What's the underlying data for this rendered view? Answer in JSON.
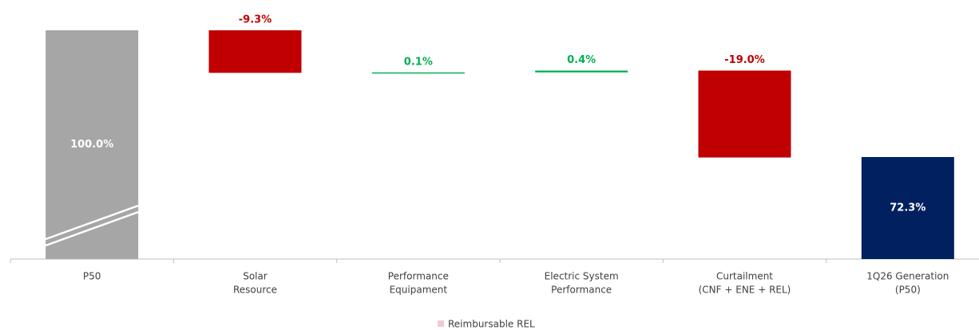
{
  "chart_data": {
    "type": "waterfall",
    "categories": [
      [
        "P50"
      ],
      [
        "Solar",
        "Resource"
      ],
      [
        "Performance",
        "Equipament"
      ],
      [
        "Electric System",
        "Performance"
      ],
      [
        "Curtailment",
        "(CNF + ENE + REL)"
      ],
      [
        "1Q26 Generation",
        "(P50)"
      ]
    ],
    "values": [
      100.0,
      -9.3,
      0.1,
      0.4,
      -19.0,
      72.3
    ],
    "value_labels": [
      "100.0%",
      "-9.3%",
      "0.1%",
      "0.4%",
      "-19.0%",
      "72.3%"
    ],
    "measures": [
      "absolute",
      "relative",
      "relative",
      "relative",
      "relative",
      "total"
    ],
    "colors": {
      "absolute": "#a6a6a6",
      "increase": "#00b050",
      "decrease": "#c00000",
      "total": "#002060"
    },
    "ylim": [
      50,
      101.5
    ],
    "axis_break": true,
    "legend": [
      {
        "name": "Reimbursable REL",
        "color": "#f4c6d9"
      }
    ]
  }
}
